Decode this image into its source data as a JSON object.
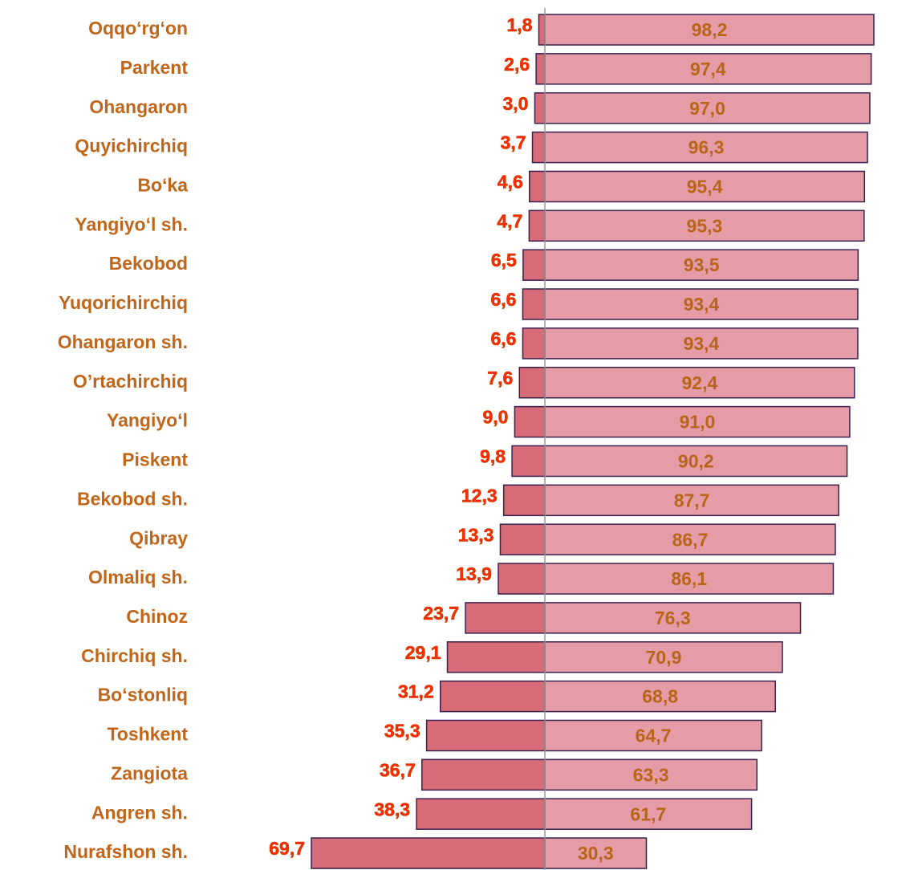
{
  "chart_data": {
    "type": "diverging-bar",
    "categories": [
      "Oqqo‘rg‘on",
      "Parkent",
      "Ohangaron ",
      "Quyichirchiq",
      "Bo‘ka",
      "Yangiyo‘l sh.",
      "Bekobod",
      "Yuqorichirchiq",
      "Ohangaron sh.",
      "O’rtachirchiq",
      "Yangiyo‘l",
      "Piskent",
      "Bekobod sh.",
      "Qibray",
      "Olmaliq sh.",
      "Chinoz",
      "Chirchiq sh.",
      "Bo‘stonliq",
      "Toshkent",
      "Zangiota",
      "Angren sh.",
      "Nurafshon sh."
    ],
    "series": [
      {
        "color": "#d76b78",
        "values": [
          1.8,
          2.6,
          3.0,
          3.7,
          4.6,
          4.7,
          6.5,
          6.6,
          6.6,
          7.6,
          9.0,
          9.8,
          12.3,
          13.3,
          13.9,
          23.7,
          29.1,
          31.2,
          35.3,
          36.7,
          38.3,
          69.7
        ],
        "value_labels": [
          "1,8",
          "2,6",
          "3,0",
          "3,7",
          "4,6",
          "4,7",
          "6,5",
          "6,6",
          "6,6",
          "7,6",
          "9,0",
          "9,8",
          "12,3",
          "13,3",
          "13,9",
          "23,7",
          "29,1",
          "31,2",
          "35,3",
          "36,7",
          "38,3",
          "69,7"
        ]
      },
      {
        "color": "#e59ca6",
        "values": [
          98.2,
          97.4,
          97.0,
          96.3,
          95.4,
          95.3,
          93.5,
          93.4,
          93.4,
          92.4,
          91.0,
          90.2,
          87.7,
          86.7,
          86.1,
          76.3,
          70.9,
          68.8,
          64.7,
          63.3,
          61.7,
          30.3
        ],
        "value_labels": [
          "98,2",
          "97,4",
          "97,0",
          "96,3",
          "95,4",
          "95,3",
          "93,5",
          "93,4",
          "93,4",
          "92,4",
          "91,0",
          "90,2",
          "87,7",
          "86,7",
          "86,1",
          "76,3",
          "70,9",
          "68,8",
          "64,7",
          "63,3",
          "61,7",
          "30,3"
        ]
      }
    ]
  }
}
